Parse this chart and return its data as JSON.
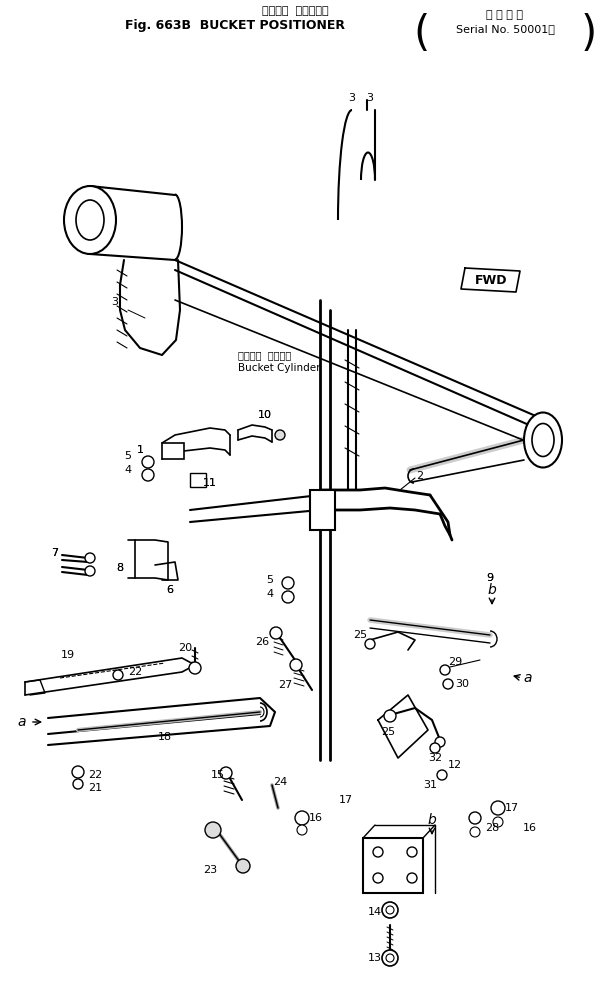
{
  "title_jp": "バケット  ポジショナ",
  "title_en": "Fig. 663B  BUCKET POSITIONER",
  "serial_jp": "適 用 号 機",
  "serial_en": "Serial No. 50001～",
  "bucket_cyl_jp": "バケット  シリンダ",
  "bucket_cyl_en": "Bucket Cylinder",
  "bg": "#ffffff"
}
